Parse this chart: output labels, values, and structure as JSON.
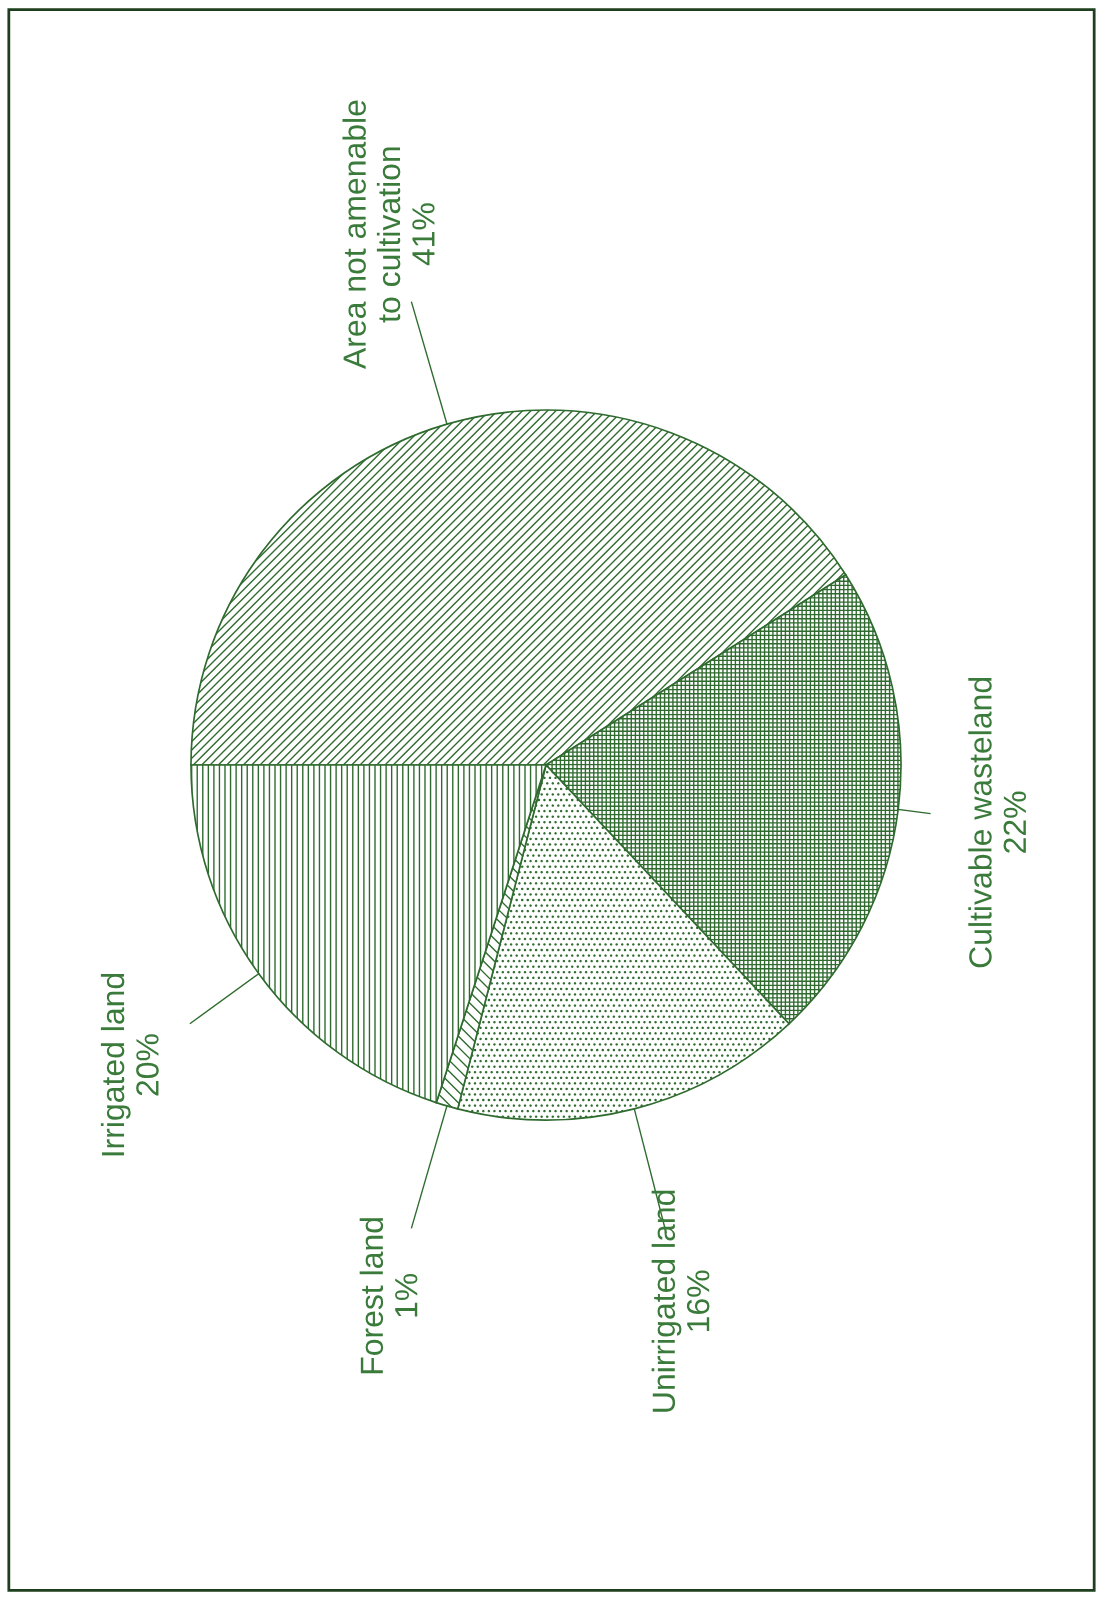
{
  "chart_data": {
    "type": "pie",
    "categories": [
      "Area not amenable\nto cultivation",
      "Cultivable wasteland",
      "Unirrigated land",
      "Forest land",
      "Irrigated land"
    ],
    "values": [
      41,
      22,
      16,
      1,
      20
    ],
    "value_labels": [
      "41%",
      "22%",
      "16%",
      "1%",
      "20%"
    ],
    "colors": [
      "#2f6b2f",
      "#2f6b2f",
      "#2f6b2f",
      "#2f6b2f",
      "#2f6b2f"
    ]
  }
}
